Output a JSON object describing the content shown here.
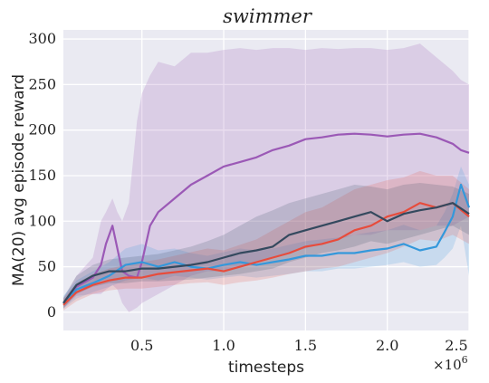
{
  "chart_data": {
    "type": "line",
    "title": "swimmer",
    "xlabel": "timesteps",
    "ylabel": "MA(20) avg episode reward",
    "x_multiplier_label": "×10",
    "x_multiplier_exp": "6",
    "xlim": [
      0.02,
      2.5
    ],
    "ylim": [
      -20,
      310
    ],
    "x_ticks": [
      0.5,
      1.0,
      1.5,
      2.0,
      2.5
    ],
    "x_tick_labels": [
      "0.5",
      "1.0",
      "1.5",
      "2.0",
      "2.5"
    ],
    "y_ticks": [
      0,
      50,
      100,
      150,
      200,
      250,
      300
    ],
    "y_tick_labels": [
      "0",
      "50",
      "100",
      "150",
      "200",
      "250",
      "300"
    ],
    "grid": true,
    "colors": {
      "background": "#eaeaf2",
      "grid": "#ffffff",
      "purple": "#9b59b6",
      "red": "#e74c3c",
      "blue": "#3498db",
      "navy": "#34495e"
    },
    "series": [
      {
        "color": "#9b59b6",
        "x": [
          0.02,
          0.1,
          0.2,
          0.25,
          0.28,
          0.32,
          0.35,
          0.38,
          0.42,
          0.47,
          0.5,
          0.55,
          0.6,
          0.7,
          0.8,
          0.9,
          1.0,
          1.1,
          1.2,
          1.3,
          1.4,
          1.5,
          1.6,
          1.7,
          1.8,
          1.9,
          2.0,
          2.1,
          2.2,
          2.3,
          2.4,
          2.45,
          2.5
        ],
        "y": [
          10,
          28,
          38,
          52,
          75,
          95,
          70,
          45,
          40,
          38,
          55,
          95,
          110,
          125,
          140,
          150,
          160,
          165,
          170,
          178,
          183,
          190,
          192,
          195,
          196,
          195,
          193,
          195,
          196,
          192,
          185,
          178,
          175
        ],
        "upper": [
          15,
          40,
          60,
          100,
          110,
          125,
          110,
          100,
          120,
          210,
          240,
          260,
          275,
          270,
          285,
          285,
          288,
          290,
          288,
          290,
          290,
          288,
          290,
          289,
          290,
          290,
          288,
          290,
          295,
          280,
          265,
          255,
          250
        ],
        "lower": [
          5,
          18,
          20,
          20,
          25,
          30,
          25,
          10,
          0,
          5,
          10,
          15,
          20,
          30,
          40,
          45,
          45,
          50,
          55,
          60,
          65,
          70,
          75,
          80,
          85,
          85,
          90,
          90,
          90,
          95,
          95,
          100,
          105
        ]
      },
      {
        "color": "#3498db",
        "x": [
          0.02,
          0.1,
          0.2,
          0.3,
          0.4,
          0.5,
          0.6,
          0.7,
          0.8,
          0.9,
          1.0,
          1.1,
          1.2,
          1.3,
          1.4,
          1.5,
          1.6,
          1.7,
          1.8,
          1.9,
          2.0,
          2.1,
          2.2,
          2.3,
          2.35,
          2.4,
          2.45,
          2.5
        ],
        "y": [
          10,
          25,
          32,
          40,
          52,
          55,
          50,
          55,
          50,
          48,
          52,
          55,
          52,
          55,
          58,
          62,
          62,
          65,
          65,
          68,
          70,
          75,
          68,
          72,
          88,
          105,
          140,
          115
        ],
        "upper": [
          18,
          35,
          45,
          55,
          70,
          75,
          68,
          70,
          65,
          62,
          66,
          70,
          68,
          70,
          74,
          78,
          80,
          82,
          85,
          88,
          90,
          96,
          90,
          95,
          110,
          130,
          160,
          140
        ],
        "lower": [
          4,
          15,
          22,
          28,
          35,
          38,
          35,
          40,
          38,
          36,
          38,
          40,
          38,
          40,
          42,
          45,
          45,
          48,
          48,
          50,
          52,
          55,
          50,
          52,
          60,
          70,
          95,
          40
        ]
      },
      {
        "color": "#e74c3c",
        "x": [
          0.02,
          0.1,
          0.2,
          0.3,
          0.4,
          0.5,
          0.6,
          0.7,
          0.8,
          0.9,
          1.0,
          1.1,
          1.2,
          1.3,
          1.4,
          1.5,
          1.6,
          1.7,
          1.8,
          1.9,
          2.0,
          2.1,
          2.2,
          2.3,
          2.4,
          2.5
        ],
        "y": [
          8,
          22,
          30,
          35,
          38,
          38,
          42,
          44,
          46,
          48,
          45,
          50,
          55,
          60,
          65,
          72,
          75,
          80,
          90,
          95,
          105,
          110,
          120,
          115,
          120,
          105
        ],
        "upper": [
          15,
          32,
          42,
          48,
          52,
          55,
          58,
          62,
          66,
          70,
          68,
          74,
          80,
          90,
          100,
          110,
          115,
          125,
          135,
          140,
          145,
          148,
          155,
          150,
          150,
          135
        ],
        "lower": [
          2,
          12,
          20,
          24,
          26,
          26,
          28,
          30,
          32,
          33,
          30,
          33,
          35,
          38,
          42,
          45,
          48,
          50,
          55,
          60,
          65,
          72,
          80,
          78,
          85,
          75
        ]
      },
      {
        "color": "#34495e",
        "x": [
          0.02,
          0.1,
          0.2,
          0.3,
          0.4,
          0.5,
          0.6,
          0.7,
          0.8,
          0.9,
          1.0,
          1.1,
          1.2,
          1.3,
          1.4,
          1.5,
          1.6,
          1.7,
          1.8,
          1.9,
          2.0,
          2.1,
          2.2,
          2.3,
          2.4,
          2.5
        ],
        "y": [
          10,
          30,
          40,
          45,
          45,
          48,
          48,
          50,
          52,
          55,
          60,
          65,
          68,
          72,
          85,
          90,
          95,
          100,
          105,
          110,
          100,
          108,
          112,
          115,
          120,
          108
        ],
        "upper": [
          16,
          40,
          52,
          58,
          60,
          62,
          64,
          68,
          72,
          78,
          85,
          95,
          105,
          112,
          120,
          125,
          130,
          135,
          140,
          138,
          135,
          140,
          142,
          140,
          138,
          130
        ],
        "lower": [
          4,
          20,
          28,
          32,
          32,
          34,
          34,
          35,
          36,
          38,
          40,
          42,
          45,
          48,
          55,
          60,
          65,
          68,
          72,
          78,
          75,
          80,
          85,
          90,
          95,
          85
        ]
      }
    ]
  }
}
